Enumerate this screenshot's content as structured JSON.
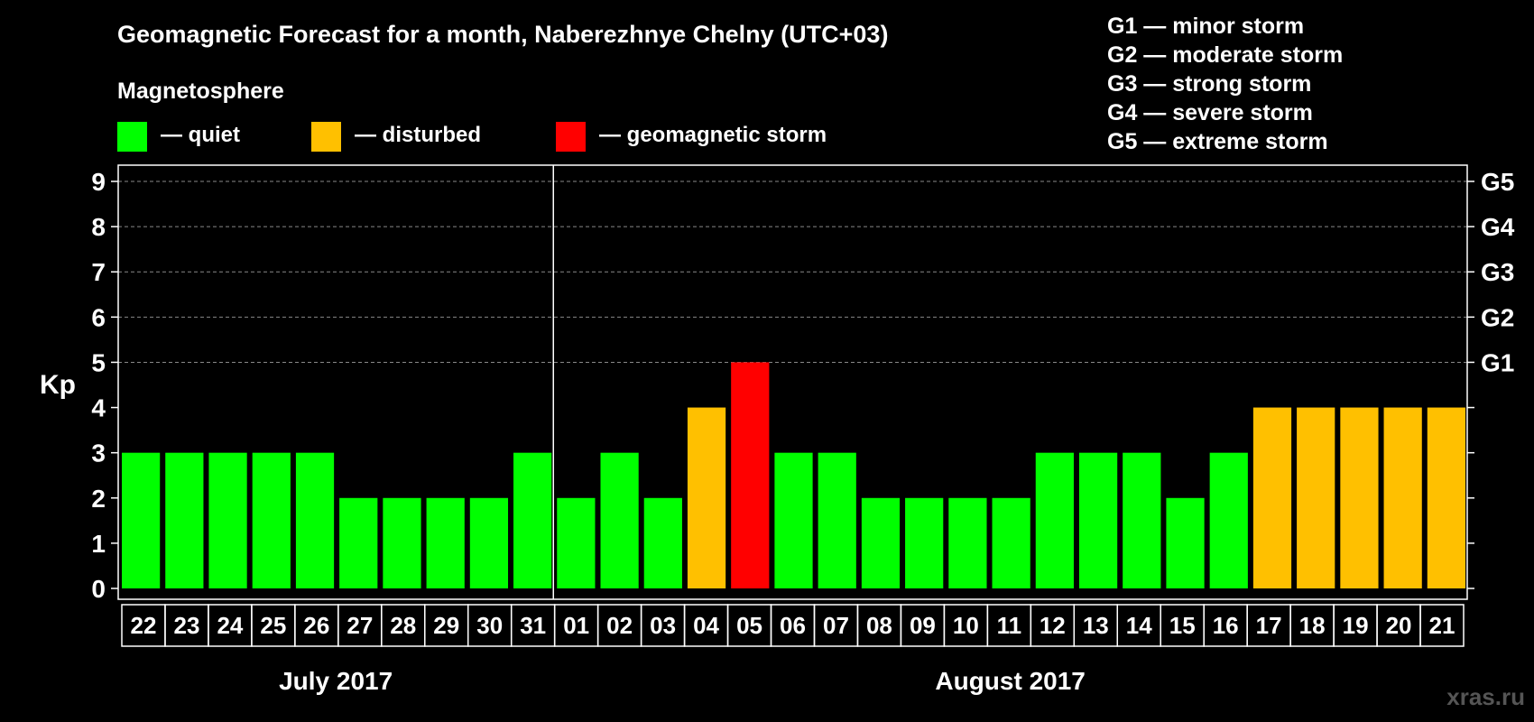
{
  "chart_data": {
    "type": "bar",
    "title": "Geomagnetic Forecast for a month, Naberezhnye Chelny (UTC+03)",
    "ylabel": "Kp",
    "ylim": [
      0,
      9
    ],
    "yticks": [
      0,
      1,
      2,
      3,
      4,
      5,
      6,
      7,
      8,
      9
    ],
    "grid_lines": [
      5,
      6,
      7,
      8,
      9
    ],
    "right_axis_labels": [
      {
        "kp": 5,
        "label": "G1"
      },
      {
        "kp": 6,
        "label": "G2"
      },
      {
        "kp": 7,
        "label": "G3"
      },
      {
        "kp": 8,
        "label": "G4"
      },
      {
        "kp": 9,
        "label": "G5"
      }
    ],
    "legend_title": "Magnetosphere",
    "legend": [
      {
        "key": "quiet",
        "label": "— quiet",
        "color": "#00ff00"
      },
      {
        "key": "disturbed",
        "label": "— disturbed",
        "color": "#ffc000"
      },
      {
        "key": "storm",
        "label": "— geomagnetic storm",
        "color": "#ff0000"
      }
    ],
    "storm_scale": [
      "G1 — minor storm",
      "G2 — moderate storm",
      "G3 — strong storm",
      "G4 — severe storm",
      "G5 — extreme storm"
    ],
    "categories": [
      "22",
      "23",
      "24",
      "25",
      "26",
      "27",
      "28",
      "29",
      "30",
      "31",
      "01",
      "02",
      "03",
      "04",
      "05",
      "06",
      "07",
      "08",
      "09",
      "10",
      "11",
      "12",
      "13",
      "14",
      "15",
      "16",
      "17",
      "18",
      "19",
      "20",
      "21"
    ],
    "values": [
      3,
      3,
      3,
      3,
      3,
      2,
      2,
      2,
      2,
      3,
      2,
      3,
      2,
      4,
      5,
      3,
      3,
      2,
      2,
      2,
      2,
      3,
      3,
      3,
      2,
      3,
      4,
      4,
      4,
      4,
      4
    ],
    "levels": [
      "quiet",
      "quiet",
      "quiet",
      "quiet",
      "quiet",
      "quiet",
      "quiet",
      "quiet",
      "quiet",
      "quiet",
      "quiet",
      "quiet",
      "quiet",
      "disturbed",
      "storm",
      "quiet",
      "quiet",
      "quiet",
      "quiet",
      "quiet",
      "quiet",
      "quiet",
      "quiet",
      "quiet",
      "quiet",
      "quiet",
      "disturbed",
      "disturbed",
      "disturbed",
      "disturbed",
      "disturbed"
    ],
    "months": [
      {
        "label": "July 2017",
        "first_index": 0,
        "last_index": 9
      },
      {
        "label": "August 2017",
        "first_index": 10,
        "last_index": 30
      }
    ]
  },
  "watermark": "xras.ru"
}
